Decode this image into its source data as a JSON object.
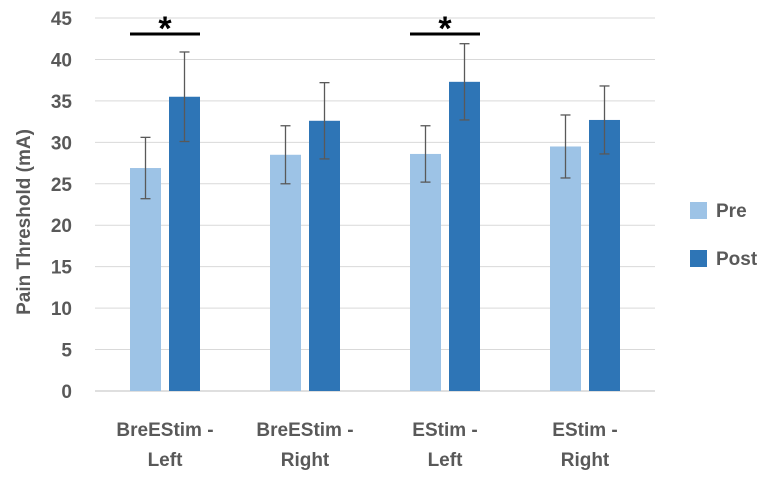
{
  "chart_data": {
    "type": "bar",
    "title": "",
    "xlabel": "",
    "ylabel": "Pain Threshold (mA)",
    "ylim": [
      0,
      45
    ],
    "yticks": [
      0,
      5,
      10,
      15,
      20,
      25,
      30,
      35,
      40,
      45
    ],
    "grid": true,
    "legend_position": "right",
    "categories": [
      [
        "BreEStim -",
        "Left"
      ],
      [
        "BreEStim -",
        "Right"
      ],
      [
        "EStim -",
        "Left"
      ],
      [
        "EStim -",
        "Right"
      ]
    ],
    "series": [
      {
        "name": "Pre",
        "color": "#9DC3E6",
        "values": [
          26.9,
          28.5,
          28.6,
          29.5
        ],
        "errors": [
          3.7,
          3.5,
          3.4,
          3.8
        ]
      },
      {
        "name": "Post",
        "color": "#2E75B6",
        "values": [
          35.5,
          32.6,
          37.3,
          32.7
        ],
        "errors": [
          5.4,
          4.6,
          4.6,
          4.1
        ]
      }
    ],
    "annotations": [
      {
        "text": "*",
        "category_index": 0
      },
      {
        "text": "*",
        "category_index": 2
      }
    ]
  }
}
